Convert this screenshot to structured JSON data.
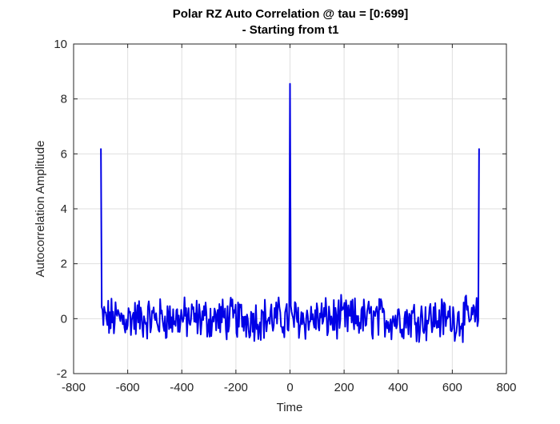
{
  "chart_data": {
    "type": "line",
    "title_line1": "Polar RZ Auto Correlation @ tau = [0:699]",
    "title_line2": "- Starting from t1",
    "xlabel": "Time",
    "ylabel": "Autocorrelation Amplitude",
    "xlim": [
      -800,
      800
    ],
    "ylim": [
      -2,
      10
    ],
    "xticks": [
      -800,
      -600,
      -400,
      -200,
      0,
      200,
      400,
      600,
      800
    ],
    "xtick_labels": [
      "-800",
      "-600",
      "-400",
      "-200",
      "0",
      "200",
      "400",
      "600",
      "800"
    ],
    "yticks": [
      -2,
      0,
      2,
      4,
      6,
      8,
      10
    ],
    "ytick_labels": [
      "-2",
      "0",
      "2",
      "4",
      "6",
      "8",
      "10"
    ],
    "grid": true,
    "series": [
      {
        "name": "autocorrelation",
        "color": "#0000e6",
        "peaks": [
          {
            "x": -699,
            "y": 6.2
          },
          {
            "x": 0,
            "y": 8.55
          },
          {
            "x": 699,
            "y": 6.2
          }
        ],
        "noise_range": [
          -1.2,
          1.5
        ],
        "x_range": [
          -699,
          699
        ]
      }
    ]
  }
}
